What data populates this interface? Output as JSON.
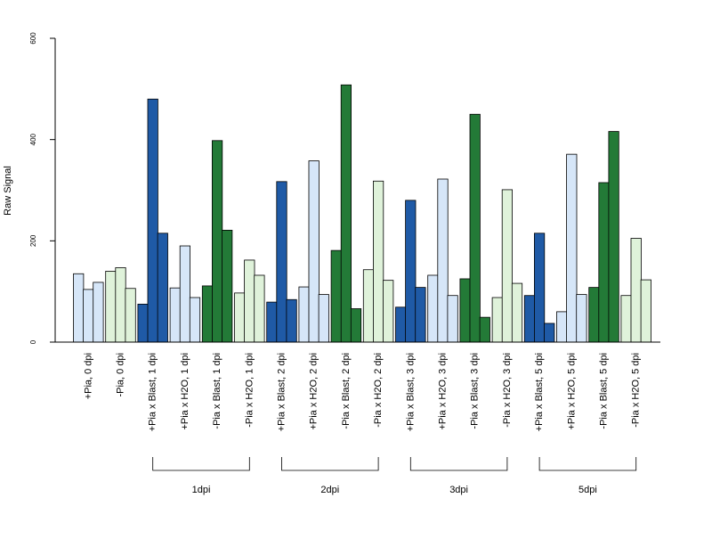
{
  "chart_data": {
    "type": "bar",
    "title": "",
    "ylabel": "Raw Signal",
    "xlabel": "",
    "ylim": [
      0,
      600
    ],
    "yticks": [
      0,
      200,
      400,
      600
    ],
    "grid": false,
    "colors": {
      "light_blue": "#d6e6f8",
      "dark_blue": "#1f5aa6",
      "light_green": "#dff2da",
      "dark_green": "#237a37",
      "bar_border": "#000000"
    },
    "groups": [
      {
        "label": "+Pia, 0 dpi",
        "color": "light_blue",
        "values": [
          135,
          104,
          118
        ]
      },
      {
        "label": "-Pia, 0 dpi",
        "color": "light_green",
        "values": [
          140,
          147,
          106
        ]
      },
      {
        "label": "+Pia x Blast, 1 dpi",
        "color": "dark_blue",
        "values": [
          75,
          480,
          215
        ]
      },
      {
        "label": "+Pia x H2O, 1 dpi",
        "color": "light_blue",
        "values": [
          107,
          190,
          88
        ]
      },
      {
        "label": "-Pia x Blast, 1 dpi",
        "color": "dark_green",
        "values": [
          111,
          398,
          221
        ]
      },
      {
        "label": "-Pia x H2O, 1 dpi",
        "color": "light_green",
        "values": [
          97,
          162,
          132
        ]
      },
      {
        "label": "+Pia x Blast, 2 dpi",
        "color": "dark_blue",
        "values": [
          79,
          317,
          84
        ]
      },
      {
        "label": "+Pia x H2O, 2 dpi",
        "color": "light_blue",
        "values": [
          109,
          358,
          94
        ]
      },
      {
        "label": "-Pia x Blast, 2 dpi",
        "color": "dark_green",
        "values": [
          181,
          508,
          66
        ]
      },
      {
        "label": "-Pia x H2O, 2 dpi",
        "color": "light_green",
        "values": [
          143,
          318,
          122
        ]
      },
      {
        "label": "+Pia x Blast, 3 dpi",
        "color": "dark_blue",
        "values": [
          69,
          280,
          108
        ]
      },
      {
        "label": "+Pia x H2O, 3 dpi",
        "color": "light_blue",
        "values": [
          132,
          322,
          92
        ]
      },
      {
        "label": "-Pia x Blast, 3 dpi",
        "color": "dark_green",
        "values": [
          125,
          450,
          49
        ]
      },
      {
        "label": "-Pia x H2O, 3 dpi",
        "color": "light_green",
        "values": [
          88,
          301,
          116
        ]
      },
      {
        "label": "+Pia x Blast, 5 dpi",
        "color": "dark_blue",
        "values": [
          92,
          215,
          37
        ]
      },
      {
        "label": "+Pia x H2O, 5 dpi",
        "color": "light_blue",
        "values": [
          60,
          371,
          94
        ]
      },
      {
        "label": "-Pia x Blast, 5 dpi",
        "color": "dark_green",
        "values": [
          108,
          315,
          416
        ]
      },
      {
        "label": "-Pia x H2O, 5 dpi",
        "color": "light_green",
        "values": [
          92,
          205,
          123
        ]
      }
    ],
    "timepoint_brackets": [
      {
        "label": "1dpi",
        "from_group": 2,
        "to_group": 5
      },
      {
        "label": "2dpi",
        "from_group": 6,
        "to_group": 9
      },
      {
        "label": "3dpi",
        "from_group": 10,
        "to_group": 13
      },
      {
        "label": "5dpi",
        "from_group": 14,
        "to_group": 17
      }
    ]
  }
}
